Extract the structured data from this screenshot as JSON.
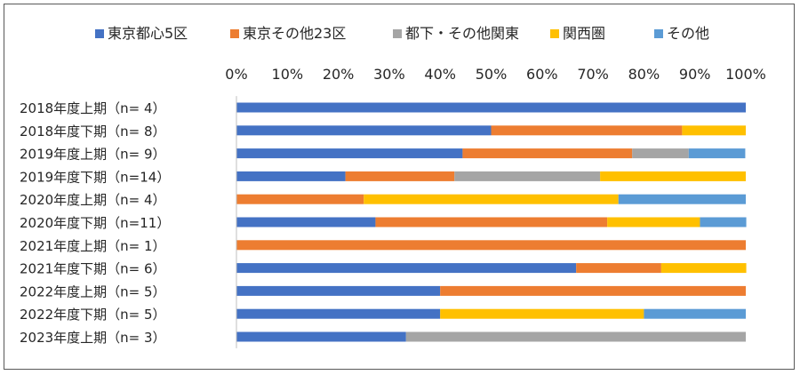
{
  "chart_data": {
    "type": "bar",
    "orientation": "horizontal",
    "stacked": "percent",
    "categories": [
      "2018年度上期（n=  4）",
      "2018年度下期（n=  8）",
      "2019年度上期（n=  9）",
      "2019年度下期（n=14）",
      "2020年度上期（n=  4）",
      "2020年度下期（n=11）",
      "2021年度上期（n=  1）",
      "2021年度下期（n=  6）",
      "2022年度上期（n=  5）",
      "2022年度下期（n=  5）",
      "2023年度上期（n=  3）"
    ],
    "series": [
      {
        "name": "東京都心5区",
        "color": "#4472C4",
        "values": [
          100,
          50,
          44.4,
          21.4,
          0,
          27.3,
          0,
          66.7,
          40,
          40,
          33.3
        ]
      },
      {
        "name": "東京その他23区",
        "color": "#ED7D31",
        "values": [
          0,
          37.5,
          33.3,
          21.4,
          25,
          45.5,
          100,
          16.7,
          60,
          0,
          0
        ]
      },
      {
        "name": "都下・その他関東",
        "color": "#A5A5A5",
        "values": [
          0,
          0,
          11.1,
          28.6,
          0,
          0,
          0,
          0,
          0,
          0,
          66.7
        ]
      },
      {
        "name": "関西圏",
        "color": "#FFC000",
        "values": [
          0,
          12.5,
          0,
          28.6,
          50,
          18.2,
          0,
          16.7,
          0,
          40,
          0
        ]
      },
      {
        "name": "その他",
        "color": "#5B9BD5",
        "values": [
          0,
          0,
          11.1,
          0,
          25,
          9.1,
          0,
          0,
          0,
          20,
          0
        ]
      }
    ],
    "xaxis": {
      "ticks": [
        "0%",
        "10%",
        "20%",
        "30%",
        "40%",
        "50%",
        "60%",
        "70%",
        "80%",
        "90%",
        "100%"
      ],
      "xlim": [
        0,
        100
      ],
      "position": "top"
    },
    "legend": {
      "placement": "top"
    },
    "grid": false
  }
}
